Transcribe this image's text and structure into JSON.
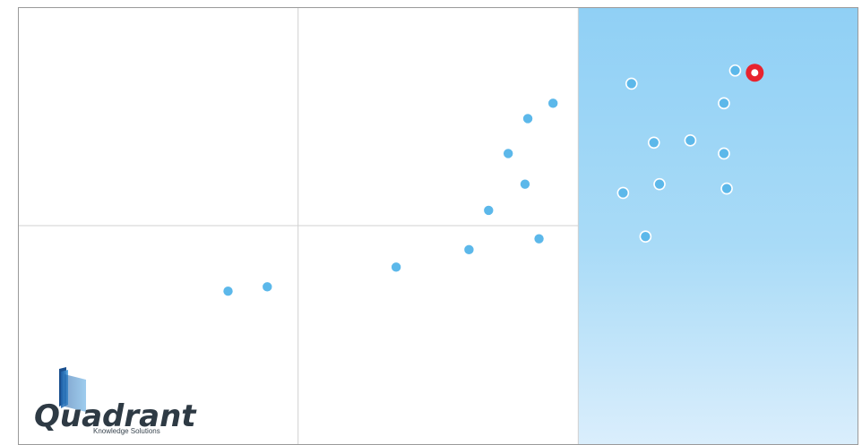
{
  "chart_data": {
    "type": "scatter",
    "title": "",
    "xlabel": "",
    "ylabel": "",
    "xlim": [
      0,
      3
    ],
    "ylim": [
      0,
      2
    ],
    "grid": true,
    "quadrant_divisions": {
      "x": [
        1,
        2
      ],
      "y": [
        1
      ]
    },
    "highlighted_region": {
      "x_from": 2,
      "x_to": 3
    },
    "series": [
      {
        "points": [
          {
            "x": 0.75,
            "y": 0.7
          },
          {
            "x": 0.89,
            "y": 0.72
          },
          {
            "x": 1.35,
            "y": 0.81
          },
          {
            "x": 1.61,
            "y": 0.89
          },
          {
            "x": 1.68,
            "y": 1.07
          },
          {
            "x": 1.86,
            "y": 0.94
          },
          {
            "x": 1.81,
            "y": 1.19
          },
          {
            "x": 1.75,
            "y": 1.33
          },
          {
            "x": 1.82,
            "y": 1.49
          },
          {
            "x": 1.91,
            "y": 1.56
          },
          {
            "x": 2.19,
            "y": 1.65
          },
          {
            "x": 2.56,
            "y": 1.71
          },
          {
            "x": 2.52,
            "y": 1.56
          },
          {
            "x": 2.27,
            "y": 1.38
          },
          {
            "x": 2.4,
            "y": 1.39
          },
          {
            "x": 2.52,
            "y": 1.33
          },
          {
            "x": 2.29,
            "y": 1.19
          },
          {
            "x": 2.53,
            "y": 1.17
          },
          {
            "x": 2.16,
            "y": 1.15
          },
          {
            "x": 2.24,
            "y": 0.95
          }
        ]
      }
    ],
    "highlighted_point": {
      "x": 2.63,
      "y": 1.7
    }
  },
  "colors": {
    "point_fill": "#5cb8ea",
    "point_stroke": "#ffffff",
    "highlight_ring": "#e8232e",
    "grid": "#d0d0d0",
    "border": "#9a9a9a",
    "region_top": "#90d0f5",
    "region_bottom": "#daeefc"
  },
  "logo": {
    "wordmark": "Quadrant",
    "tagline": "Knowledge Solutions",
    "icon": "book-icon"
  }
}
